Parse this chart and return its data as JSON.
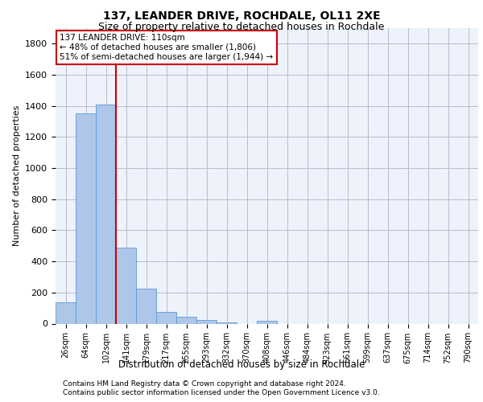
{
  "title1": "137, LEANDER DRIVE, ROCHDALE, OL11 2XE",
  "title2": "Size of property relative to detached houses in Rochdale",
  "xlabel": "Distribution of detached houses by size in Rochdale",
  "ylabel": "Number of detached properties",
  "categories": [
    "26sqm",
    "64sqm",
    "102sqm",
    "141sqm",
    "179sqm",
    "217sqm",
    "255sqm",
    "293sqm",
    "332sqm",
    "370sqm",
    "408sqm",
    "446sqm",
    "484sqm",
    "523sqm",
    "561sqm",
    "599sqm",
    "637sqm",
    "675sqm",
    "714sqm",
    "752sqm",
    "790sqm"
  ],
  "values": [
    135,
    1350,
    1410,
    490,
    225,
    75,
    42,
    25,
    10,
    0,
    20,
    0,
    0,
    0,
    0,
    0,
    0,
    0,
    0,
    0,
    0
  ],
  "bar_color": "#aec6e8",
  "bar_edge_color": "#5b9bd5",
  "vline_x": 2.5,
  "vline_color": "#cc0000",
  "annotation_text": "137 LEANDER DRIVE: 110sqm\n← 48% of detached houses are smaller (1,806)\n51% of semi-detached houses are larger (1,944) →",
  "annotation_box_color": "#ffffff",
  "annotation_box_edge": "#cc0000",
  "background_color": "#eef2fb",
  "grid_color": "#bbbbcc",
  "footer1": "Contains HM Land Registry data © Crown copyright and database right 2024.",
  "footer2": "Contains public sector information licensed under the Open Government Licence v3.0.",
  "ylim": [
    0,
    1900
  ],
  "title1_fontsize": 10,
  "title2_fontsize": 9,
  "ylabel_fontsize": 8,
  "tick_fontsize": 7,
  "ann_fontsize": 7.5,
  "footer_fontsize": 6.5,
  "xlabel_fontsize": 8.5
}
